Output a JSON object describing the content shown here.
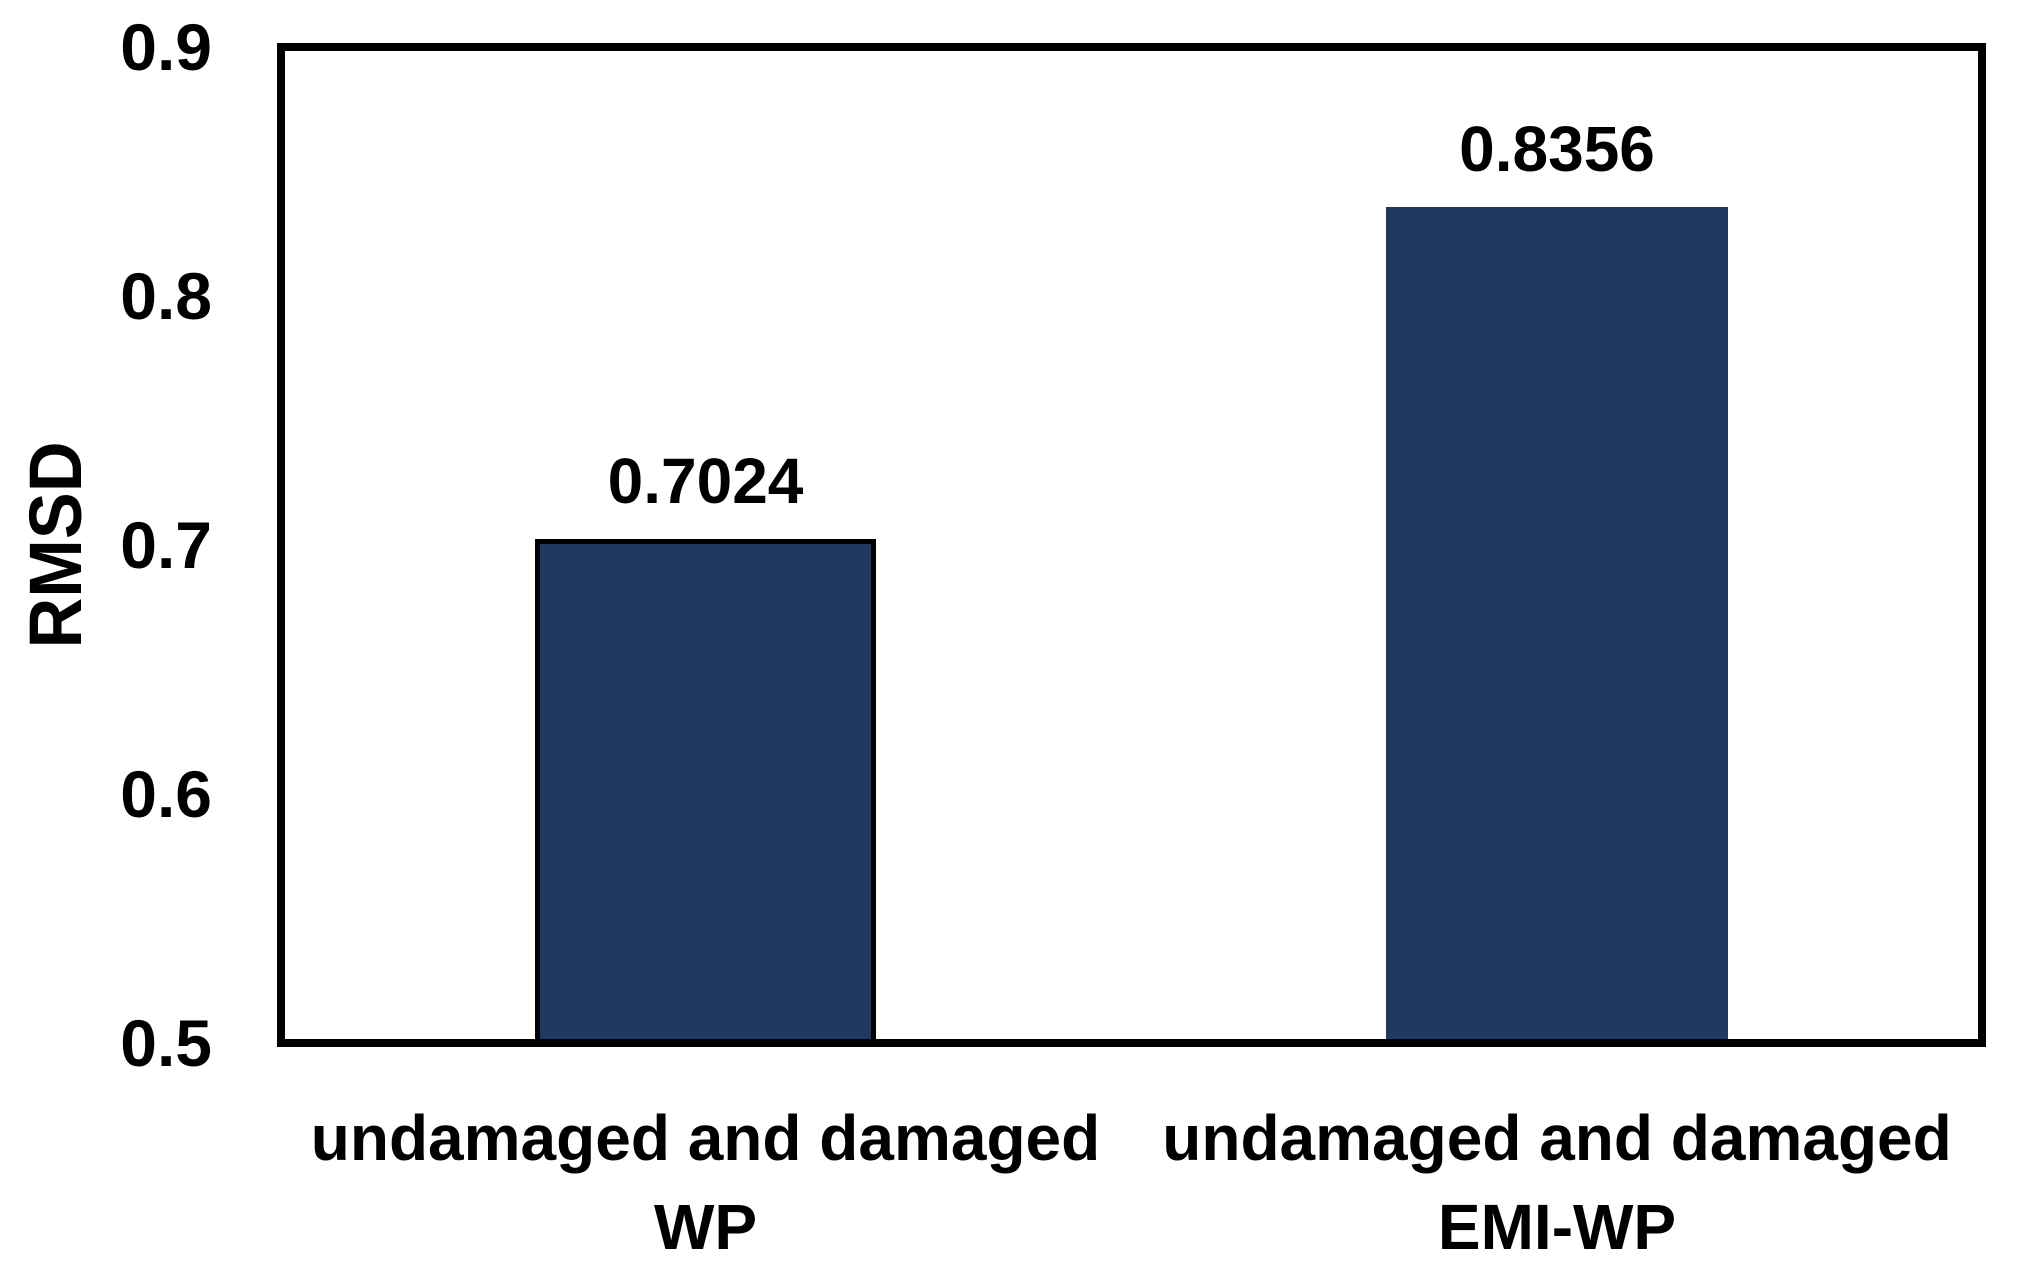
{
  "chart_data": {
    "type": "bar",
    "title": "",
    "xlabel": "",
    "ylabel": "RMSD",
    "categories": [
      "undamaged and damaged WP",
      "undamaged and damaged EMI-WP"
    ],
    "category_lines": [
      [
        "undamaged and damaged",
        "WP"
      ],
      [
        "undamaged and damaged",
        "EMI-WP"
      ]
    ],
    "values": [
      0.7024,
      0.8356
    ],
    "value_labels": [
      "0.7024",
      "0.8356"
    ],
    "ylim": [
      0.5,
      0.9
    ],
    "yticks": [
      0.5,
      0.6,
      0.7,
      0.8,
      0.9
    ],
    "ytick_labels": [
      "0.5",
      "0.6",
      "0.7",
      "0.8",
      "0.9"
    ],
    "grid": false,
    "legend": null,
    "colors": {
      "bar_fill": "#21395E",
      "bar_outlines": [
        "#000000",
        "none"
      ],
      "axis": "#000000",
      "text": "#000000",
      "background": "#ffffff"
    }
  }
}
